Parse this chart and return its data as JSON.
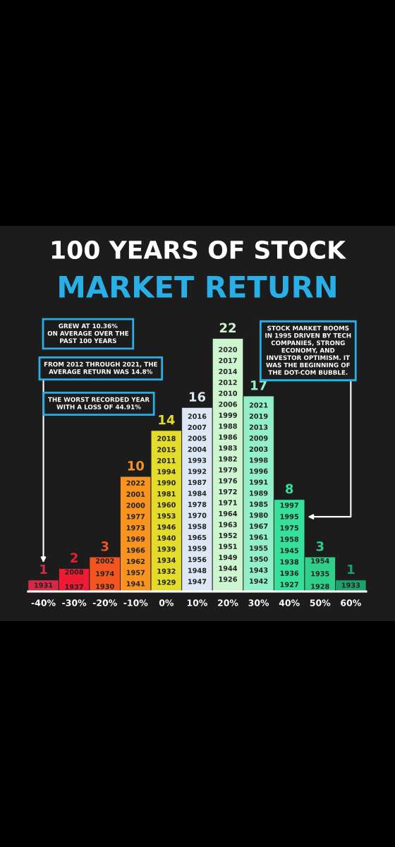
{
  "chart_data": {
    "type": "bar",
    "title": "100 YEARS OF STOCK",
    "subtitle": "MARKET RETURN",
    "categories": [
      "-40%",
      "-30%",
      "-20%",
      "-10%",
      "0%",
      "10%",
      "20%",
      "30%",
      "40%",
      "50%",
      "60%"
    ],
    "values": [
      1,
      2,
      3,
      10,
      14,
      16,
      22,
      17,
      8,
      3,
      1
    ],
    "colors": [
      "#d42a45",
      "#ec1c34",
      "#f2551f",
      "#f7931e",
      "#e3dc2b",
      "#dde8f4",
      "#cdf5cf",
      "#92efc6",
      "#35e09a",
      "#2fcf8a",
      "#1f9f6c"
    ],
    "data_labels": true,
    "annotations": [
      "GREW AT 10.36%\nON AVERAGE OVER THE\nPAST 100 YEARS",
      "FROM 2012 THROUGH 2021, THE\nAVERAGE RETURN WAS 14.8%",
      "THE WORST RECORDED YEAR\nWITH A LOSS OF 44.91%",
      "STOCK MARKET BOOMS\nIN 1995 DRIVEN BY TECH\nCOMPANIES, STRONG\nECONOMY, AND\nINVESTOR OPTIMISM. IT\nWAS THE BEGINNING OF\nTHE DOT-COM BUBBLE.",
      "1931",
      "2008\n1937",
      "2002\n1974\n1930",
      "2022\n2001\n2000\n1977\n1973\n1969\n1966\n1962\n1957\n1941",
      "2018\n2015\n2011\n1994\n1990\n1981\n1960\n1953\n1946\n1940\n1939\n1934\n1932\n1929",
      "2016\n2007\n2005\n2004\n1993\n1992\n1987\n1984\n1978\n1970\n1958\n1965\n1959\n1956\n1948\n1947",
      "2020\n2017\n2014\n2012\n2010\n2006\n1999\n1988\n1986\n1983\n1982\n1979\n1976\n1972\n1971\n1964\n1963\n1952\n1951\n1949\n1944\n1926",
      "2021\n2019\n2013\n2009\n2003\n1998\n1996\n1991\n1989\n1985\n1980\n1967\n1961\n1955\n1950\n1943\n1942",
      "1997\n1995\n1975\n1958\n1945\n1938\n1936\n1927",
      "1954\n1935\n1928",
      "1933"
    ]
  }
}
